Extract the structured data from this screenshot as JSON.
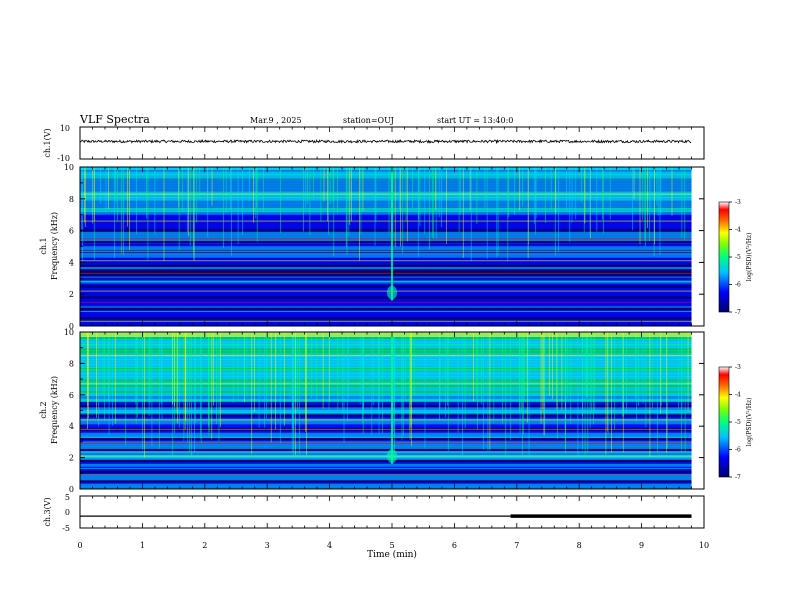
{
  "header": {
    "title": "VLF Spectra",
    "date": "Mar.9 , 2025",
    "station": "station=OUJ",
    "start": "start UT = 13:40:0"
  },
  "colors": {
    "spectrogram_scale": [
      "#00006e",
      "#0000ff",
      "#00a0ff",
      "#00ffff",
      "#00ff60",
      "#ffff00",
      "#ff8000",
      "#ff0000",
      "#ffffff"
    ],
    "trace": "#000000"
  },
  "chart_data": [
    {
      "type": "line",
      "ylabel": "ch.1(V)",
      "ylim": [
        -10,
        10
      ],
      "yticks": [
        "10",
        "-10"
      ],
      "xlim": [
        0,
        10
      ],
      "series": [
        {
          "values_approx_level": 1
        }
      ]
    },
    {
      "type": "heatmap",
      "ylabel_top": "ch.1",
      "ylabel": "Frequency (kHz)",
      "ylim": [
        0,
        10
      ],
      "yticks": [
        "0",
        "2",
        "4",
        "6",
        "8",
        "10"
      ],
      "xlim": [
        0,
        10
      ],
      "colorbar": {
        "label": "log(PSD)(V²/Hz)",
        "ticks": [
          "-3",
          "-4",
          "-5",
          "-6",
          "-7"
        ],
        "range": [
          -7,
          -3
        ]
      }
    },
    {
      "type": "heatmap",
      "ylabel_top": "ch.2",
      "ylabel": "Frequency (kHz)",
      "ylim": [
        0,
        10
      ],
      "yticks": [
        "0",
        "2",
        "4",
        "6",
        "8",
        "10"
      ],
      "xlim": [
        0,
        10
      ],
      "colorbar": {
        "label": "log(PSD)(V²/Hz)",
        "ticks": [
          "-3",
          "-4",
          "-5",
          "-6",
          "-7"
        ],
        "range": [
          -7,
          -3
        ]
      }
    },
    {
      "type": "line",
      "ylabel": "ch.3(V)",
      "ylim": [
        -5,
        5
      ],
      "yticks": [
        "5",
        "0",
        "-5"
      ],
      "xlim": [
        0,
        10
      ],
      "series": [
        {
          "level": -1.3,
          "thick_from_min": 6.9,
          "data_end_min": 9.8
        }
      ]
    }
  ],
  "xaxis": {
    "label": "Time (min)",
    "ticks": [
      "0",
      "1",
      "2",
      "3",
      "4",
      "5",
      "6",
      "7",
      "8",
      "9",
      "10"
    ]
  }
}
